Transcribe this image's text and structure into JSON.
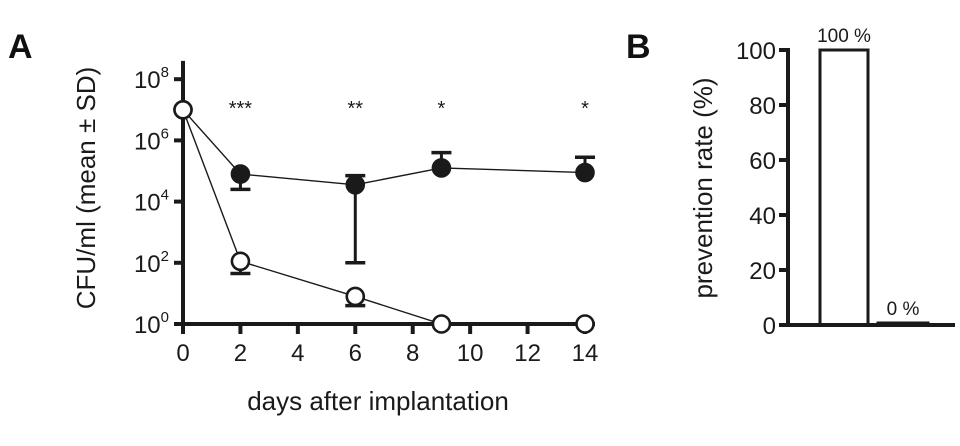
{
  "chart_data": [
    {
      "panel": "A",
      "type": "line",
      "title": "",
      "xlabel": "days after implantation",
      "ylabel": "CFU/ml (mean ± SD)",
      "yscale": "log10",
      "xlim": [
        0,
        14
      ],
      "ylim_log10": [
        0,
        8.6
      ],
      "x_ticks": [
        0,
        2,
        4,
        6,
        8,
        10,
        12,
        14
      ],
      "y_ticks_log10": [
        0,
        2,
        4,
        6,
        8
      ],
      "y_tick_base": "10",
      "grid": false,
      "series": [
        {
          "name": "filled",
          "marker": "filled-circle",
          "x": [
            0,
            2,
            6,
            9,
            14
          ],
          "log10_values": [
            7.0,
            4.9,
            4.55,
            5.1,
            4.95
          ],
          "error_low_log10": [
            null,
            4.4,
            2.0,
            null,
            null
          ],
          "error_high_log10": [
            null,
            null,
            4.85,
            5.6,
            5.45
          ]
        },
        {
          "name": "open",
          "marker": "open-circle",
          "x": [
            0,
            2,
            6,
            9,
            14
          ],
          "log10_values": [
            7.0,
            2.05,
            0.9,
            0.0,
            0.0
          ],
          "error_low_log10": [
            null,
            1.65,
            0.6,
            null,
            null
          ],
          "error_high_log10": [
            null,
            null,
            null,
            null,
            null
          ]
        }
      ],
      "annotations": [
        {
          "x": 2,
          "text": "***"
        },
        {
          "x": 6,
          "text": "**"
        },
        {
          "x": 9,
          "text": "*"
        },
        {
          "x": 14,
          "text": "*"
        }
      ]
    },
    {
      "panel": "B",
      "type": "bar",
      "title": "",
      "xlabel": "",
      "ylabel": "prevention rate (%)",
      "categories": [
        "open",
        "filled"
      ],
      "values": [
        100,
        0
      ],
      "bar_fills": [
        "#ffffff",
        "#1a1a1a"
      ],
      "data_labels": [
        "100 %",
        "0 %"
      ],
      "ylim": [
        0,
        100
      ],
      "y_ticks": [
        0,
        20,
        40,
        60,
        80,
        100
      ],
      "grid": false
    }
  ],
  "panels": {
    "a_label": "A",
    "b_label": "B"
  },
  "colors": {
    "ink": "#1a1a1a",
    "background": "#ffffff"
  }
}
